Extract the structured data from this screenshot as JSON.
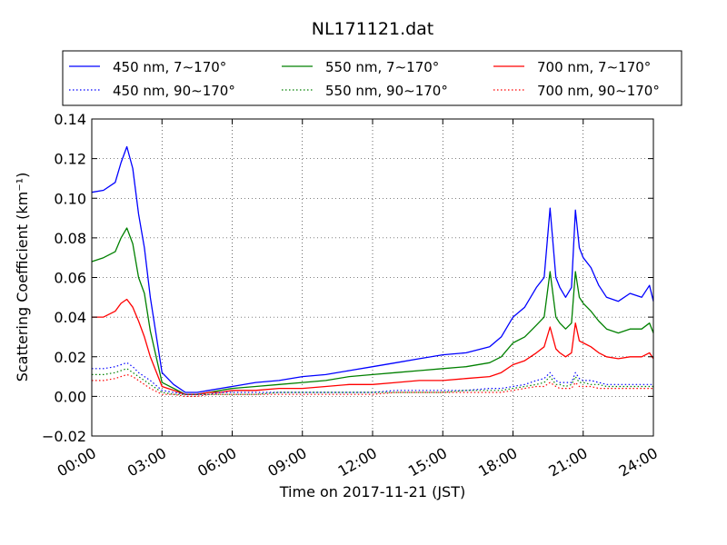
{
  "chart_data": {
    "type": "line",
    "title": "NL171121.dat",
    "xlabel": "Time on 2017-11-21 (JST)",
    "ylabel": "Scattering Coefficient (km⁻¹)",
    "xlim": [
      "00:00",
      "24:00"
    ],
    "ylim": [
      -0.02,
      0.14
    ],
    "x_ticks": [
      "00:00",
      "03:00",
      "06:00",
      "09:00",
      "12:00",
      "15:00",
      "18:00",
      "21:00",
      "24:00"
    ],
    "y_ticks": [
      "−0.02",
      "0.00",
      "0.02",
      "0.04",
      "0.06",
      "0.08",
      "0.10",
      "0.12",
      "0.14"
    ],
    "grid": true,
    "legend_position": "top, above plot",
    "x": [
      "00:00",
      "00:30",
      "01:00",
      "01:15",
      "01:30",
      "01:45",
      "02:00",
      "02:15",
      "02:30",
      "03:00",
      "03:30",
      "04:00",
      "04:30",
      "05:00",
      "05:30",
      "06:00",
      "07:00",
      "08:00",
      "09:00",
      "10:00",
      "11:00",
      "12:00",
      "13:00",
      "14:00",
      "15:00",
      "16:00",
      "17:00",
      "17:30",
      "18:00",
      "18:30",
      "19:00",
      "19:20",
      "19:35",
      "19:50",
      "20:00",
      "20:15",
      "20:30",
      "20:40",
      "20:50",
      "21:00",
      "21:20",
      "21:40",
      "22:00",
      "22:30",
      "23:00",
      "23:30",
      "23:50",
      "24:00"
    ],
    "series": [
      {
        "name": "450 nm, 7∼170°",
        "color": "#0000ff",
        "style": "solid",
        "values": [
          0.103,
          0.104,
          0.108,
          0.118,
          0.126,
          0.115,
          0.092,
          0.075,
          0.05,
          0.012,
          0.006,
          0.002,
          0.002,
          0.003,
          0.004,
          0.005,
          0.007,
          0.008,
          0.01,
          0.011,
          0.013,
          0.015,
          0.017,
          0.019,
          0.021,
          0.022,
          0.025,
          0.03,
          0.04,
          0.045,
          0.055,
          0.06,
          0.095,
          0.06,
          0.055,
          0.05,
          0.055,
          0.094,
          0.075,
          0.07,
          0.065,
          0.056,
          0.05,
          0.048,
          0.052,
          0.05,
          0.056,
          0.048
        ]
      },
      {
        "name": "550 nm, 7∼170°",
        "color": "#008000",
        "style": "solid",
        "values": [
          0.068,
          0.07,
          0.073,
          0.08,
          0.085,
          0.077,
          0.06,
          0.052,
          0.033,
          0.007,
          0.004,
          0.001,
          0.001,
          0.002,
          0.003,
          0.004,
          0.005,
          0.006,
          0.007,
          0.008,
          0.01,
          0.011,
          0.012,
          0.013,
          0.014,
          0.015,
          0.017,
          0.02,
          0.027,
          0.03,
          0.036,
          0.04,
          0.063,
          0.04,
          0.037,
          0.034,
          0.037,
          0.063,
          0.05,
          0.047,
          0.043,
          0.038,
          0.034,
          0.032,
          0.034,
          0.034,
          0.037,
          0.032
        ]
      },
      {
        "name": "700 nm, 7∼170°",
        "color": "#ff0000",
        "style": "solid",
        "values": [
          0.04,
          0.04,
          0.043,
          0.047,
          0.049,
          0.045,
          0.038,
          0.03,
          0.02,
          0.005,
          0.003,
          0.001,
          0.001,
          0.002,
          0.002,
          0.003,
          0.003,
          0.004,
          0.004,
          0.005,
          0.006,
          0.006,
          0.007,
          0.008,
          0.008,
          0.009,
          0.01,
          0.012,
          0.016,
          0.018,
          0.022,
          0.025,
          0.035,
          0.024,
          0.022,
          0.02,
          0.022,
          0.037,
          0.028,
          0.027,
          0.025,
          0.022,
          0.02,
          0.019,
          0.02,
          0.02,
          0.022,
          0.019
        ]
      },
      {
        "name": "450 nm, 90∼170°",
        "color": "#0000ff",
        "style": "dotted",
        "values": [
          0.014,
          0.014,
          0.015,
          0.016,
          0.017,
          0.015,
          0.012,
          0.01,
          0.008,
          0.003,
          0.002,
          0.001,
          0.001,
          0.001,
          0.002,
          0.002,
          0.002,
          0.002,
          0.002,
          0.002,
          0.002,
          0.002,
          0.003,
          0.003,
          0.003,
          0.003,
          0.004,
          0.004,
          0.005,
          0.006,
          0.008,
          0.009,
          0.012,
          0.008,
          0.007,
          0.007,
          0.007,
          0.012,
          0.009,
          0.008,
          0.008,
          0.007,
          0.006,
          0.006,
          0.006,
          0.006,
          0.006,
          0.006
        ]
      },
      {
        "name": "550 nm, 90∼170°",
        "color": "#008000",
        "style": "dotted",
        "values": [
          0.011,
          0.011,
          0.012,
          0.013,
          0.014,
          0.012,
          0.01,
          0.008,
          0.006,
          0.002,
          0.001,
          0.001,
          0.001,
          0.001,
          0.001,
          0.001,
          0.001,
          0.002,
          0.002,
          0.002,
          0.002,
          0.002,
          0.002,
          0.002,
          0.002,
          0.003,
          0.003,
          0.003,
          0.004,
          0.005,
          0.006,
          0.007,
          0.01,
          0.006,
          0.006,
          0.005,
          0.006,
          0.01,
          0.007,
          0.007,
          0.006,
          0.006,
          0.005,
          0.005,
          0.005,
          0.005,
          0.005,
          0.005
        ]
      },
      {
        "name": "700 nm, 90∼170°",
        "color": "#ff0000",
        "style": "dotted",
        "values": [
          0.008,
          0.008,
          0.009,
          0.01,
          0.011,
          0.01,
          0.008,
          0.006,
          0.004,
          0.001,
          0.001,
          0.0,
          0.0,
          0.001,
          0.001,
          0.001,
          0.001,
          0.001,
          0.001,
          0.001,
          0.001,
          0.001,
          0.002,
          0.002,
          0.002,
          0.002,
          0.002,
          0.002,
          0.003,
          0.004,
          0.005,
          0.005,
          0.007,
          0.005,
          0.004,
          0.004,
          0.004,
          0.007,
          0.005,
          0.005,
          0.005,
          0.004,
          0.004,
          0.004,
          0.004,
          0.004,
          0.004,
          0.004
        ]
      }
    ],
    "legend_order": [
      0,
      1,
      2,
      3,
      4,
      5
    ]
  }
}
